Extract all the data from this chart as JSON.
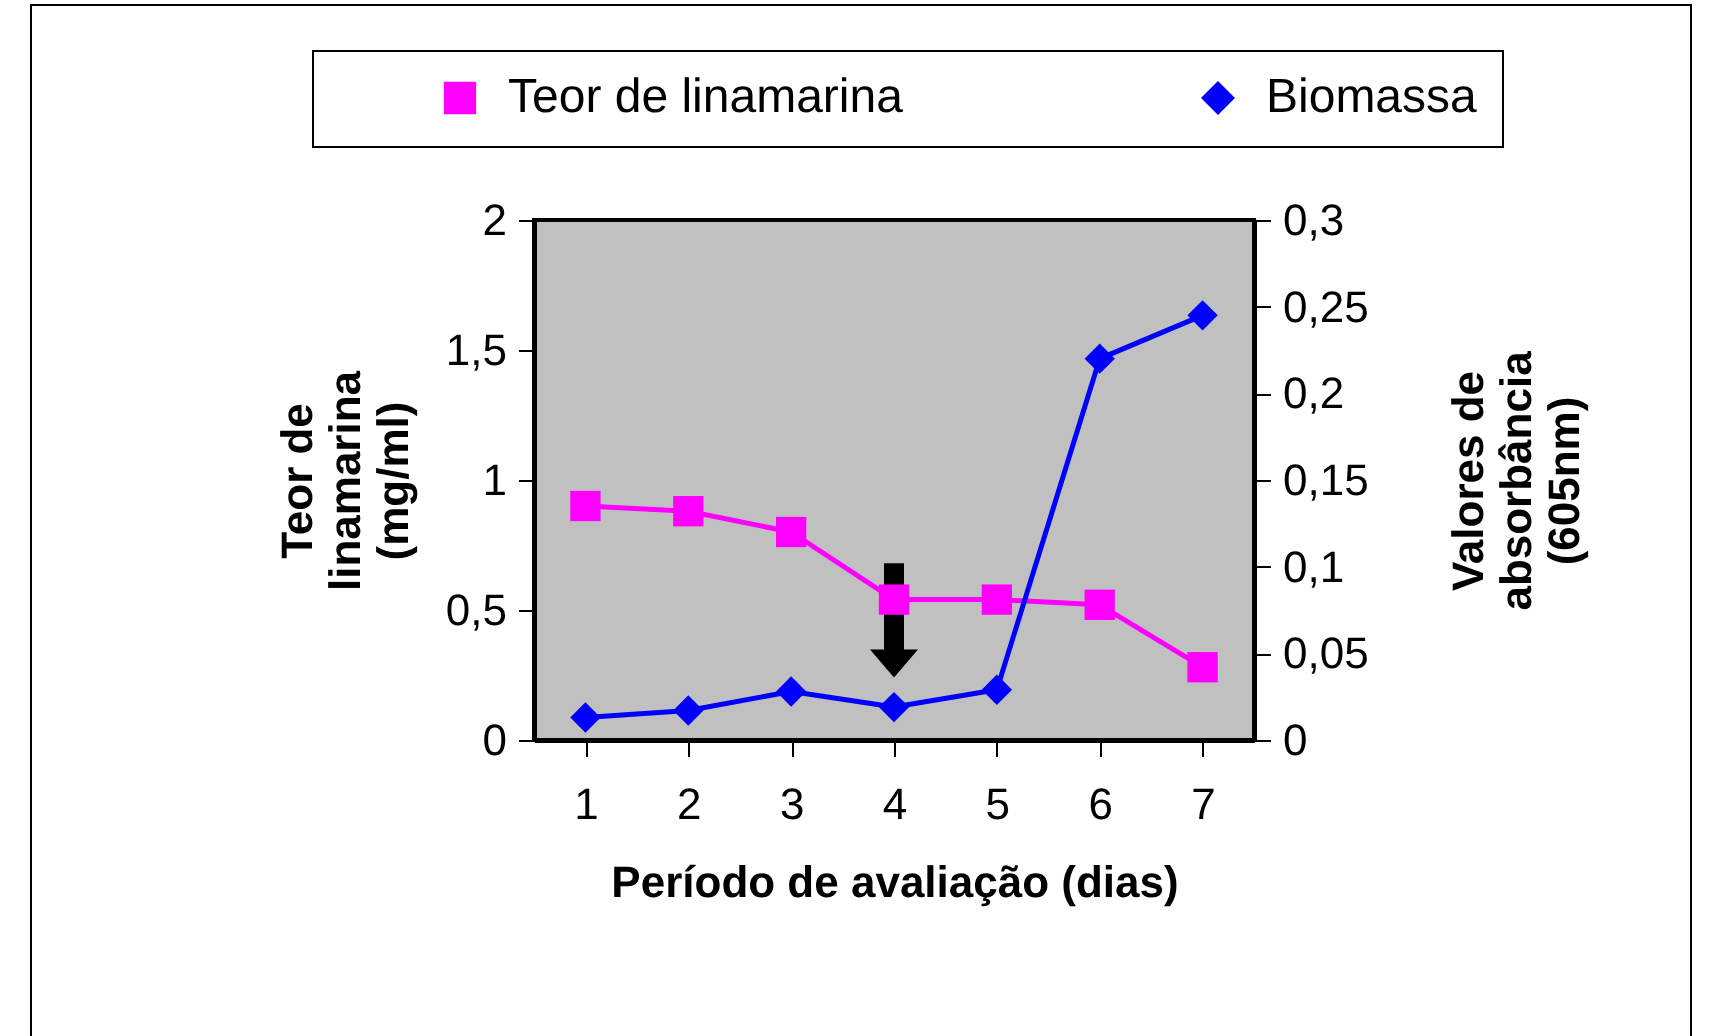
{
  "chart_data": {
    "type": "line",
    "categories": [
      "1",
      "2",
      "3",
      "4",
      "5",
      "6",
      "7"
    ],
    "xlabel": "Período de avaliação (dias)",
    "ylabel": "Teor de linamarina (mg/ml)",
    "y2label": "Valores de absorbância (605nm)",
    "series": [
      {
        "name": "Teor de linamarina",
        "color": "#ff00ff",
        "marker": "square",
        "values": [
          0.9,
          0.88,
          0.8,
          0.54,
          0.54,
          0.52,
          0.28
        ]
      },
      {
        "name": "Biomassa",
        "color": "#0000ff",
        "marker": "diamond",
        "axis": "y2",
        "values": [
          0.013,
          0.017,
          0.028,
          0.019,
          0.029,
          0.22,
          0.245
        ]
      }
    ],
    "ylim": [
      0,
      2
    ],
    "yticks": [
      0,
      {
        "value": 0.5,
        "label": "0,5"
      },
      1,
      {
        "value": 1.5,
        "label": "1,5"
      },
      2
    ],
    "y2lim": [
      0,
      0.3
    ],
    "y2ticks": [
      0,
      {
        "value": 0.05,
        "label": "0,05"
      },
      {
        "value": 0.1,
        "label": "0,1"
      },
      {
        "value": 0.15,
        "label": "0,15"
      },
      {
        "value": 0.2,
        "label": "0,2"
      },
      {
        "value": 0.25,
        "label": "0,25"
      },
      {
        "value": 0.3,
        "label": "0,3"
      }
    ],
    "grid": false,
    "legend": "top",
    "line_style": "solid"
  }
}
